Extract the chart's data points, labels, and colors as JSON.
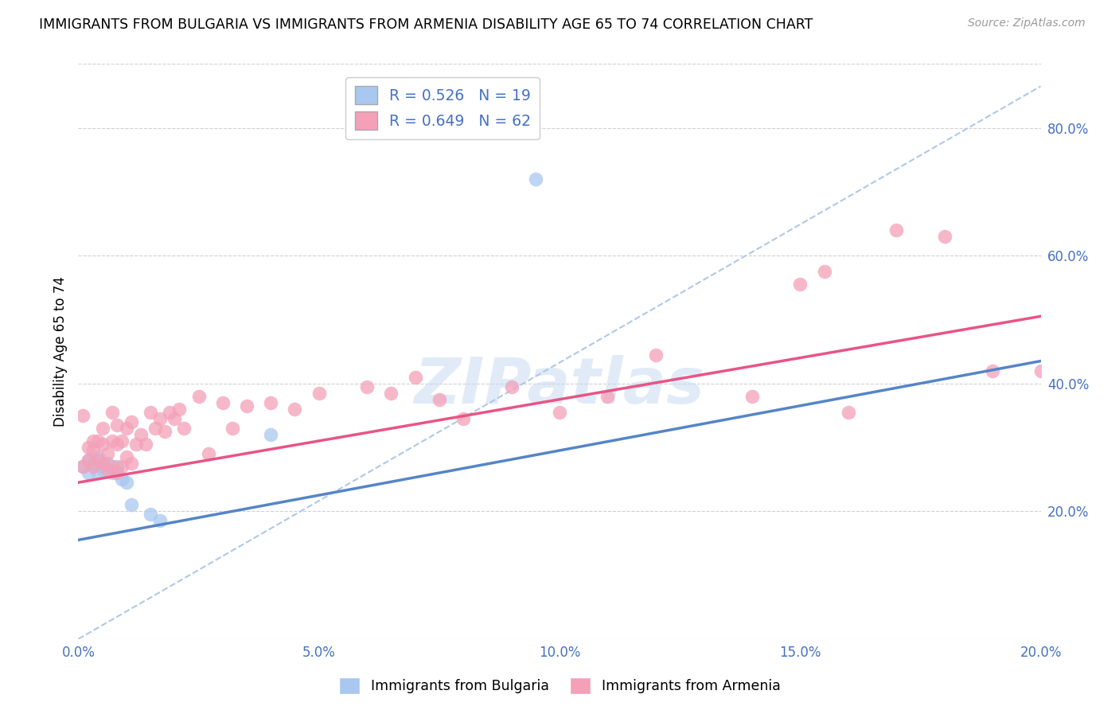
{
  "title": "IMMIGRANTS FROM BULGARIA VS IMMIGRANTS FROM ARMENIA DISABILITY AGE 65 TO 74 CORRELATION CHART",
  "source": "Source: ZipAtlas.com",
  "ylabel": "Disability Age 65 to 74",
  "xlim": [
    0.0,
    0.2
  ],
  "ylim": [
    0.0,
    0.9
  ],
  "xticks": [
    0.0,
    0.05,
    0.1,
    0.15,
    0.2
  ],
  "yticks_right": [
    0.2,
    0.4,
    0.6,
    0.8
  ],
  "legend_entries": [
    {
      "label": "R = 0.526   N = 19",
      "color": "#a8c8f0"
    },
    {
      "label": "R = 0.649   N = 62",
      "color": "#f4a0b8"
    }
  ],
  "legend_labels_bottom": [
    "Immigrants from Bulgaria",
    "Immigrants from Armenia"
  ],
  "bulgaria_color": "#a8c8f0",
  "armenia_color": "#f4a0b8",
  "bulgaria_line_color": "#5585c8",
  "armenia_line_color": "#e85585",
  "watermark": "ZIPatlas",
  "bulgaria_scatter_x": [
    0.001,
    0.002,
    0.002,
    0.003,
    0.004,
    0.004,
    0.005,
    0.005,
    0.006,
    0.007,
    0.007,
    0.008,
    0.009,
    0.01,
    0.011,
    0.015,
    0.017,
    0.04,
    0.095
  ],
  "bulgaria_scatter_y": [
    0.27,
    0.26,
    0.28,
    0.275,
    0.26,
    0.285,
    0.27,
    0.265,
    0.275,
    0.26,
    0.265,
    0.27,
    0.25,
    0.245,
    0.21,
    0.195,
    0.185,
    0.32,
    0.72
  ],
  "armenia_scatter_x": [
    0.001,
    0.001,
    0.002,
    0.002,
    0.003,
    0.003,
    0.003,
    0.004,
    0.004,
    0.005,
    0.005,
    0.005,
    0.006,
    0.006,
    0.007,
    0.007,
    0.007,
    0.008,
    0.008,
    0.008,
    0.009,
    0.009,
    0.01,
    0.01,
    0.011,
    0.011,
    0.012,
    0.013,
    0.014,
    0.015,
    0.016,
    0.017,
    0.018,
    0.019,
    0.02,
    0.021,
    0.022,
    0.025,
    0.027,
    0.03,
    0.032,
    0.035,
    0.04,
    0.045,
    0.05,
    0.06,
    0.065,
    0.07,
    0.075,
    0.08,
    0.09,
    0.1,
    0.11,
    0.12,
    0.14,
    0.15,
    0.155,
    0.16,
    0.17,
    0.18,
    0.19,
    0.2
  ],
  "armenia_scatter_y": [
    0.27,
    0.35,
    0.28,
    0.3,
    0.27,
    0.295,
    0.31,
    0.28,
    0.31,
    0.275,
    0.305,
    0.33,
    0.265,
    0.29,
    0.27,
    0.31,
    0.355,
    0.26,
    0.305,
    0.335,
    0.27,
    0.31,
    0.285,
    0.33,
    0.275,
    0.34,
    0.305,
    0.32,
    0.305,
    0.355,
    0.33,
    0.345,
    0.325,
    0.355,
    0.345,
    0.36,
    0.33,
    0.38,
    0.29,
    0.37,
    0.33,
    0.365,
    0.37,
    0.36,
    0.385,
    0.395,
    0.385,
    0.41,
    0.375,
    0.345,
    0.395,
    0.355,
    0.38,
    0.445,
    0.38,
    0.555,
    0.575,
    0.355,
    0.64,
    0.63,
    0.42,
    0.42
  ],
  "bulgaria_line_x": [
    0.0,
    0.2
  ],
  "bulgaria_line_y": [
    0.155,
    0.435
  ],
  "armenia_line_x": [
    0.0,
    0.2
  ],
  "armenia_line_y": [
    0.245,
    0.505
  ],
  "dash_line_x": [
    0.0,
    0.2
  ],
  "dash_line_y": [
    0.0,
    0.865
  ]
}
